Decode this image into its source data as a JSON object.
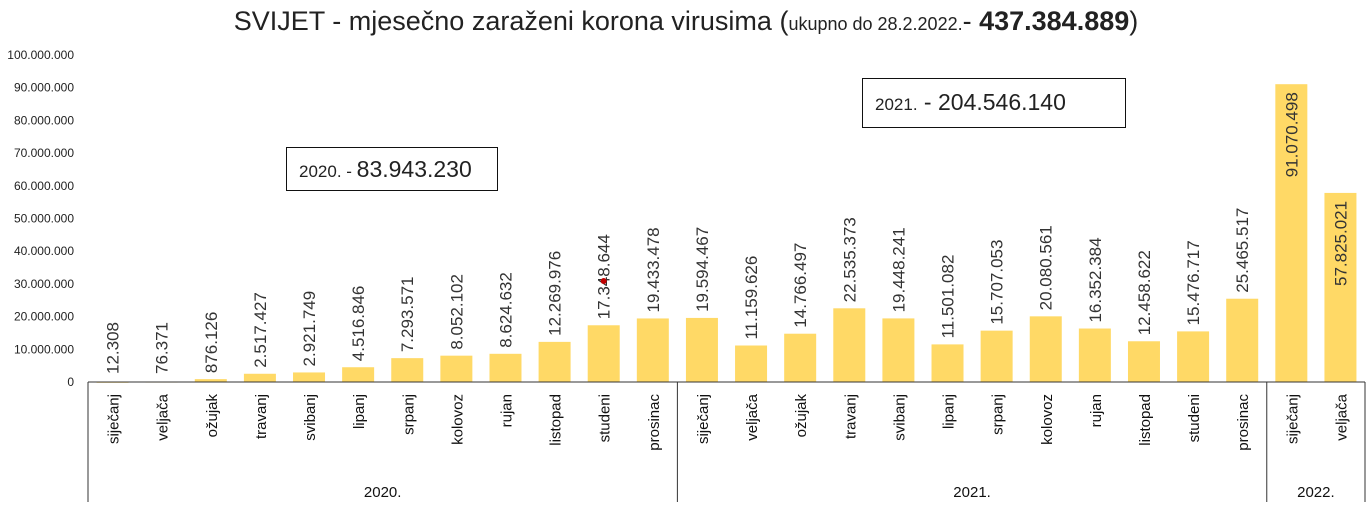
{
  "title": {
    "main": "SVIJET - mjesečno zaraženi korona virusima (",
    "small": "ukupno do 28.2.2022.",
    "dash": "- ",
    "total": "437.384.889",
    "close": ")"
  },
  "boxes": [
    {
      "year_label": "2020. - ",
      "value": "83.943.230"
    },
    {
      "year_label": "2021.",
      "value": " - 204.546.140"
    }
  ],
  "colors": {
    "bar": "#FFD966",
    "axis": "#333333",
    "marker": "#C00000"
  },
  "chart_data": {
    "type": "bar",
    "title": "SVIJET - mjesečno zaraženi korona virusima (ukupno do 28.2.2022.- 437.384.889)",
    "ylim": [
      0,
      100000000
    ],
    "yticks": [
      "0",
      "10.000.000",
      "20.000.000",
      "30.000.000",
      "40.000.000",
      "50.000.000",
      "60.000.000",
      "70.000.000",
      "80.000.000",
      "90.000.000",
      "100.000.000"
    ],
    "grid": false,
    "categories": [
      "siječanj",
      "veljača",
      "ožujak",
      "travanj",
      "svibanj",
      "lipanj",
      "srpanj",
      "kolovoz",
      "rujan",
      "listopad",
      "studeni",
      "prosinac",
      "siječanj",
      "veljača",
      "ožujak",
      "travanj",
      "svibanj",
      "lipanj",
      "srpanj",
      "kolovoz",
      "rujan",
      "listopad",
      "studeni",
      "prosinac",
      "siječanj",
      "veljača"
    ],
    "values": [
      12308,
      76371,
      876126,
      2517427,
      2921749,
      4516846,
      7293571,
      8052102,
      8624632,
      12269976,
      17348644,
      19433478,
      19594467,
      11159626,
      14766497,
      22535373,
      19448241,
      11501082,
      15707053,
      20080561,
      16352384,
      12458622,
      15476717,
      25465517,
      91070498,
      57825021
    ],
    "labels": [
      "12.308",
      "76.371",
      "876.126",
      "2.517.427",
      "2.921.749",
      "4.516.846",
      "7.293.571",
      "8.052.102",
      "8.624.632",
      "12.269.976",
      "17.348.644",
      "19.433.478",
      "19.594.467",
      "11.159.626",
      "14.766.497",
      "22.535.373",
      "19.448.241",
      "11.501.082",
      "15.707.053",
      "20.080.561",
      "16.352.384",
      "12.458.622",
      "15.476.717",
      "25.465.517",
      "91.070.498",
      "57.825.021"
    ],
    "groups": [
      {
        "label": "2020.",
        "count": 12
      },
      {
        "label": "2021.",
        "count": 12
      },
      {
        "label": "2022.",
        "count": 2
      }
    ]
  }
}
